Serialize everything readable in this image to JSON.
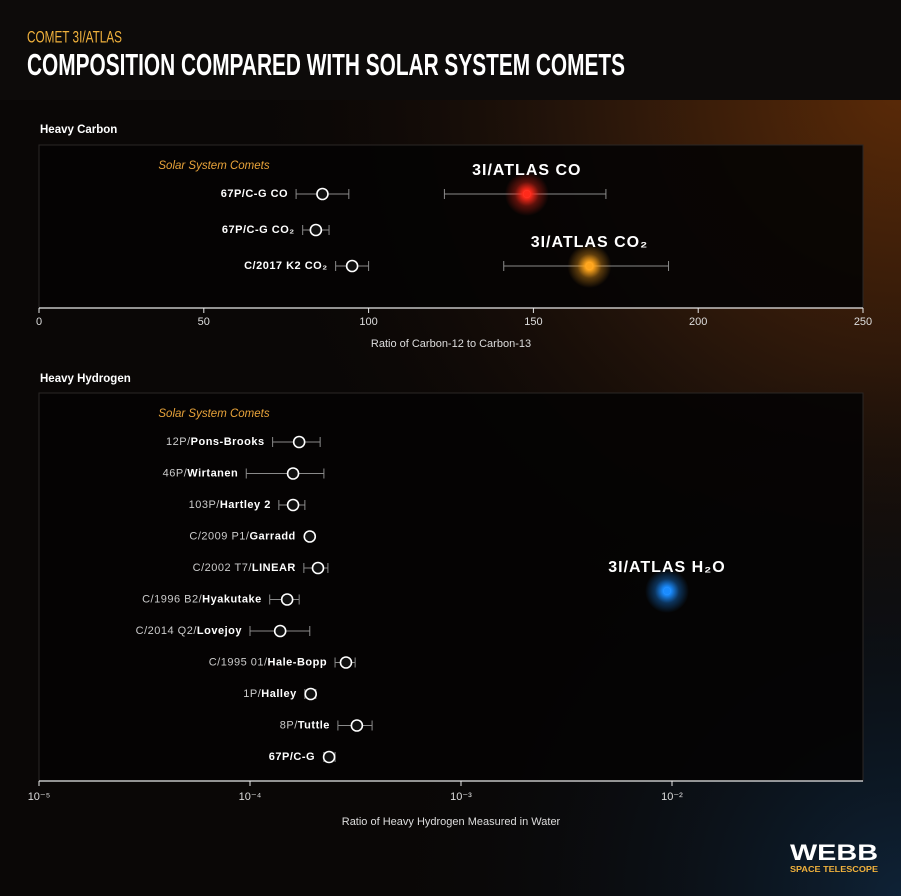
{
  "header": {
    "kicker": "COMET 3I/ATLAS",
    "title": "COMPOSITION COMPARED WITH SOLAR SYSTEM COMETS"
  },
  "logo": {
    "name": "WEBB",
    "subtitle": "SPACE TELESCOPE"
  },
  "chart_data": [
    {
      "type": "errorbar",
      "title": "Heavy Carbon",
      "xlabel": "Ratio of Carbon-12 to Carbon-13",
      "xlim": [
        0,
        250
      ],
      "xticks": [
        0,
        50,
        100,
        150,
        200,
        250
      ],
      "log_x": false,
      "series": [
        {
          "name": "Solar System Comets",
          "color": "#ffffff",
          "labels": [
            "67P/C-G CO",
            "67P/C-G CO₂",
            "C/2017 K2 CO₂"
          ],
          "values": [
            86,
            84,
            95
          ],
          "lower": [
            78,
            80,
            90
          ],
          "upper": [
            94,
            88,
            100
          ]
        },
        {
          "labels": [
            "3I/ATLAS CO",
            "3I/ATLAS CO₂"
          ],
          "colors": [
            "#ff2a1a",
            "#ffa51c"
          ],
          "values": [
            148,
            167
          ],
          "lower": [
            123,
            141
          ],
          "upper": [
            172,
            191
          ]
        }
      ]
    },
    {
      "type": "errorbar",
      "title": "Heavy Hydrogen",
      "xlabel": "Ratio of Heavy Hydrogen Measured in Water",
      "xlim": [
        1e-05,
        0.0804
      ],
      "log_x": true,
      "xticks": [
        {
          "value": 1e-05,
          "label": "10⁻⁵"
        },
        {
          "value": 0.0001,
          "label": "10⁻⁴"
        },
        {
          "value": 0.001,
          "label": "10⁻³"
        },
        {
          "value": 0.01,
          "label": "10⁻²"
        }
      ],
      "series": [
        {
          "name": "Solar System Comets",
          "color": "#ffffff",
          "designations": [
            "12P/",
            "46P/",
            "103P/",
            "C/2009 P1/",
            "C/2002 T7/",
            "C/1996 B2/",
            "C/2014 Q2/",
            "C/1995 01/",
            "1P/",
            "8P/",
            null
          ],
          "names": [
            "Pons-Brooks",
            "Wirtanen",
            "Hartley 2",
            "Garradd",
            "LINEAR",
            "Hyakutake",
            "Lovejoy",
            "Hale-Bopp",
            "Halley",
            "Tuttle",
            "67P/C-G"
          ],
          "values": [
            0.000171,
            0.00016,
            0.00016,
            0.000192,
            0.00021,
            0.00015,
            0.000139,
            0.000285,
            0.000194,
            0.000321,
            0.000237
          ],
          "lower": [
            0.000128,
            9.6e-05,
            0.000137,
            null,
            0.00018,
            0.000124,
            0.0001,
            0.000253,
            0.000182,
            0.000261,
            0.000224
          ],
          "upper": [
            0.000215,
            0.000224,
            0.000182,
            null,
            0.000234,
            0.000171,
            0.000192,
            0.000315,
            0.000205,
            0.000379,
            0.000253
          ]
        },
        {
          "labels": [
            "3I/ATLAS H₂O"
          ],
          "colors": [
            "#1a8cff"
          ],
          "values": [
            0.00947
          ],
          "lower": [
            null
          ],
          "upper": [
            null
          ]
        }
      ]
    }
  ]
}
